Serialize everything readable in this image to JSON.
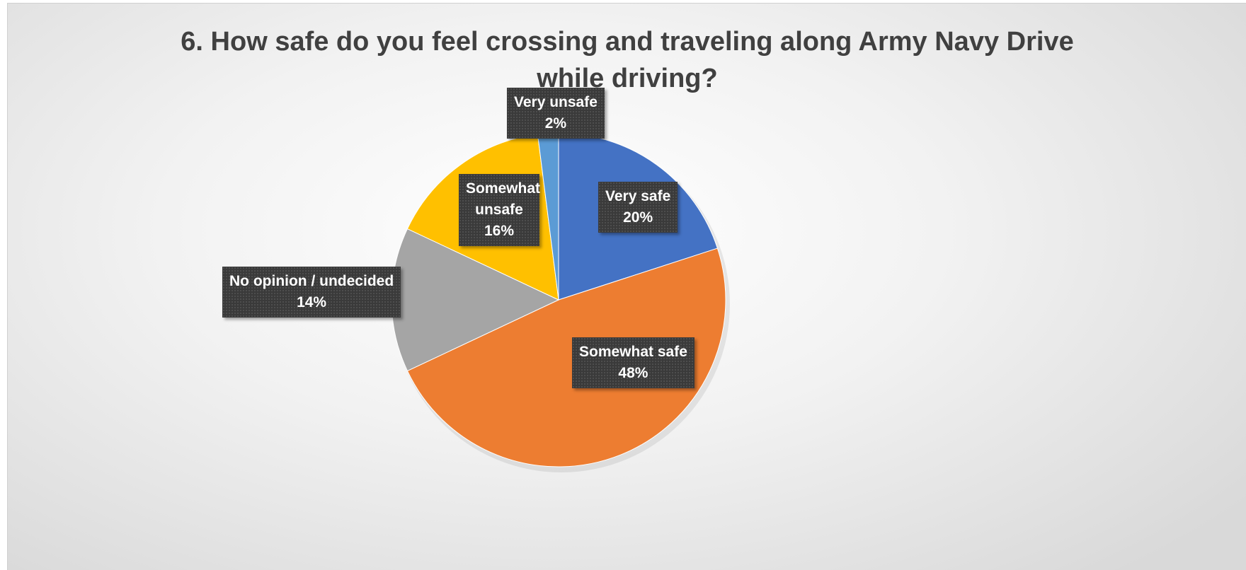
{
  "chart_data": {
    "type": "pie",
    "title_lines": [
      "6. How safe do you feel crossing and traveling along Army Navy Drive",
      "while driving?"
    ],
    "slices": [
      {
        "label": "Very safe",
        "value": 20,
        "value_label": "20%",
        "color": "#4472C4"
      },
      {
        "label": "Somewhat safe",
        "value": 48,
        "value_label": "48%",
        "color": "#ED7D31"
      },
      {
        "label": "No opinion / undecided",
        "value": 14,
        "value_label": "14%",
        "color": "#A5A5A5"
      },
      {
        "label": "Somewhat unsafe",
        "value": 16,
        "value_label": "16%",
        "color": "#FFC000"
      },
      {
        "label": "Very unsafe",
        "value": 2,
        "value_label": "2%",
        "color": "#5B9BD5"
      }
    ],
    "start_angle_deg": 0,
    "direction": "clockwise",
    "legend": "none"
  }
}
